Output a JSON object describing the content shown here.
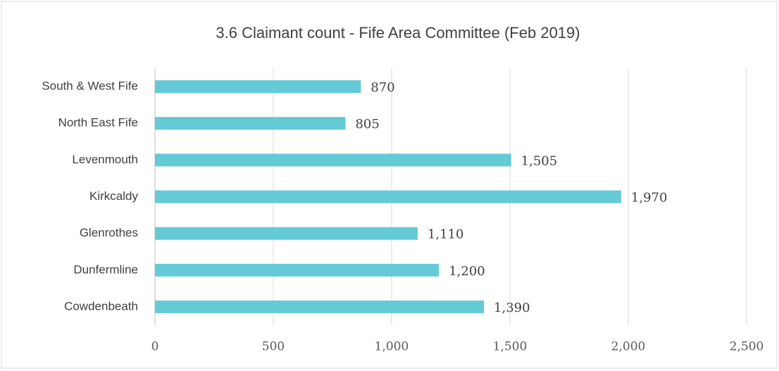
{
  "chart_data": {
    "type": "bar",
    "orientation": "horizontal",
    "title": "3.6 Claimant count - Fife Area Committee (Feb 2019)",
    "categories": [
      "South & West Fife",
      "North East Fife",
      "Levenmouth",
      "Kirkcaldy",
      "Glenrothes",
      "Dunfermline",
      "Cowdenbeath"
    ],
    "values": [
      870,
      805,
      1505,
      1970,
      1110,
      1200,
      1390
    ],
    "value_labels": [
      "870",
      "805",
      "1,505",
      "1,970",
      "1,110",
      "1,200",
      "1,390"
    ],
    "color": "#63cad6",
    "xlim": [
      0,
      2500
    ],
    "xticks": [
      0,
      500,
      {
        "value": 1000,
        "label": "1,000"
      },
      {
        "value": 1500,
        "label": "1,500"
      },
      {
        "value": 2000,
        "label": "2,000"
      },
      {
        "value": 2500,
        "label": "2,500"
      }
    ],
    "grid": true
  }
}
